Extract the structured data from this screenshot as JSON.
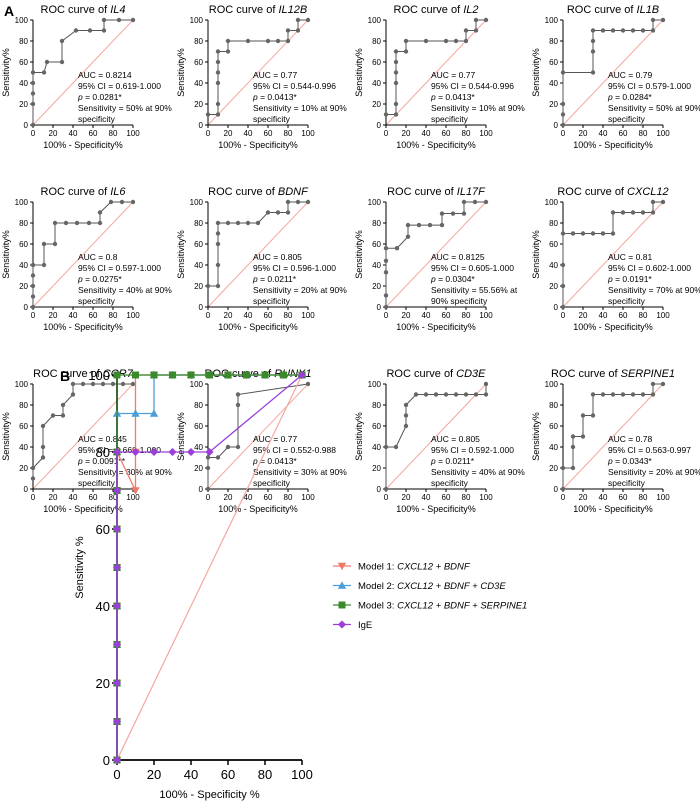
{
  "panel_a_letter": "A",
  "panel_b_letter": "B",
  "chart_data": [
    {
      "type": "line",
      "title_prefix": "ROC curve of ",
      "gene": "IL4",
      "xlabel": "100% - Specificity%",
      "ylabel": "Sensitivity%",
      "xlim": [
        0,
        100
      ],
      "ylim": [
        0,
        100
      ],
      "xticks": [
        0,
        20,
        40,
        60,
        80,
        100
      ],
      "yticks": [
        0,
        20,
        40,
        60,
        80,
        100
      ],
      "x": [
        0,
        0,
        0,
        0,
        0,
        11,
        14,
        29,
        29,
        43,
        57,
        71,
        71,
        86,
        100
      ],
      "y": [
        0,
        20,
        30,
        40,
        50,
        50,
        60,
        60,
        80,
        90,
        90,
        90,
        100,
        100,
        100
      ],
      "annotation": [
        "AUC = 0.8214",
        "95% CI = 0.619-1.000",
        "p = 0.0281*",
        "Sensitivity = 50% at 90%",
        "specificity"
      ]
    },
    {
      "type": "line",
      "title_prefix": "ROC curve of ",
      "gene": "IL12B",
      "xlabel": "100% - Specificity%",
      "ylabel": "Sensitivity%",
      "xlim": [
        0,
        100
      ],
      "ylim": [
        0,
        100
      ],
      "xticks": [
        0,
        20,
        40,
        60,
        80,
        100
      ],
      "yticks": [
        0,
        20,
        40,
        60,
        80,
        100
      ],
      "x": [
        0,
        10,
        10,
        10,
        10,
        10,
        10,
        20,
        20,
        40,
        60,
        70,
        80,
        80,
        90,
        90,
        100
      ],
      "y": [
        10,
        10,
        20,
        40,
        50,
        60,
        70,
        70,
        80,
        80,
        80,
        80,
        80,
        90,
        90,
        100,
        100
      ],
      "annotation": [
        "AUC = 0.77",
        "95% CI = 0.544-0.996",
        "p = 0.0413*",
        "Sensitivity = 10% at 90%",
        "specificity"
      ]
    },
    {
      "type": "line",
      "title_prefix": "ROC curve of ",
      "gene": "IL2",
      "xlabel": "100% - Specificity%",
      "ylabel": "Sensitivity%",
      "xlim": [
        0,
        100
      ],
      "ylim": [
        0,
        100
      ],
      "xticks": [
        0,
        20,
        40,
        60,
        80,
        100
      ],
      "yticks": [
        0,
        20,
        40,
        60,
        80,
        100
      ],
      "x": [
        0,
        10,
        10,
        10,
        10,
        10,
        10,
        20,
        20,
        40,
        60,
        70,
        80,
        80,
        90,
        90,
        100
      ],
      "y": [
        10,
        10,
        20,
        40,
        50,
        60,
        70,
        70,
        80,
        80,
        80,
        80,
        80,
        90,
        90,
        100,
        100
      ],
      "annotation": [
        "AUC = 0.77",
        "95% CI = 0.544-0.996",
        "p = 0.0413*",
        "Sensitivity = 10% at 90%",
        "specificity"
      ]
    },
    {
      "type": "line",
      "title_prefix": "ROC curve of ",
      "gene": "IL1B",
      "xlabel": "100% - Specificity%",
      "ylabel": "Sensitivity%",
      "xlim": [
        0,
        100
      ],
      "ylim": [
        0,
        100
      ],
      "xticks": [
        0,
        20,
        40,
        60,
        80,
        100
      ],
      "yticks": [
        0,
        20,
        40,
        60,
        80,
        100
      ],
      "x": [
        0,
        0,
        0,
        0,
        30,
        30,
        30,
        30,
        40,
        50,
        60,
        70,
        80,
        90,
        90,
        100
      ],
      "y": [
        0,
        10,
        20,
        50,
        50,
        70,
        80,
        90,
        90,
        90,
        90,
        90,
        90,
        90,
        100,
        100
      ],
      "annotation": [
        "AUC = 0.79",
        "95% CI = 0.579-1.000",
        "p = 0.0284*",
        "Sensitivity = 50% at 90%",
        "specificity"
      ]
    },
    {
      "type": "line",
      "title_prefix": "ROC curve of ",
      "gene": "IL6",
      "xlabel": "100% - Specificity%",
      "ylabel": "Sensitivity%",
      "xlim": [
        0,
        100
      ],
      "ylim": [
        0,
        100
      ],
      "xticks": [
        0,
        20,
        40,
        60,
        80,
        100
      ],
      "yticks": [
        0,
        20,
        40,
        60,
        80,
        100
      ],
      "x": [
        0,
        0,
        0,
        0,
        0,
        11,
        11,
        22,
        22,
        33,
        44,
        56,
        67,
        67,
        78,
        89,
        100
      ],
      "y": [
        0,
        10,
        20,
        30,
        40,
        40,
        60,
        60,
        80,
        80,
        80,
        80,
        80,
        90,
        100,
        100,
        100
      ],
      "annotation": [
        "AUC = 0.8",
        "95% CI = 0.597-1.000",
        "p = 0.0275*",
        "Sensitivity = 40% at 90%",
        "specificity"
      ]
    },
    {
      "type": "line",
      "title_prefix": "ROC curve of ",
      "gene": "BDNF",
      "xlabel": "100% - Specificity%",
      "ylabel": "Sensitivity%",
      "xlim": [
        0,
        100
      ],
      "ylim": [
        0,
        100
      ],
      "xticks": [
        0,
        20,
        40,
        60,
        80,
        100
      ],
      "yticks": [
        0,
        20,
        40,
        60,
        80,
        100
      ],
      "x": [
        0,
        10,
        10,
        10,
        10,
        10,
        20,
        30,
        40,
        50,
        60,
        70,
        80,
        80,
        90,
        100
      ],
      "y": [
        20,
        20,
        40,
        60,
        70,
        80,
        80,
        80,
        80,
        80,
        90,
        90,
        90,
        100,
        100,
        100
      ],
      "annotation": [
        "AUC = 0.805",
        "95% CI = 0.596-1.000",
        "p = 0.0211*",
        "Sensitivity = 20% at 90%",
        "specificity"
      ]
    },
    {
      "type": "line",
      "title_prefix": "ROC curve of ",
      "gene": "IL17F",
      "xlabel": "100% - Specificity%",
      "ylabel": "Sensitivity%",
      "xlim": [
        0,
        100
      ],
      "ylim": [
        0,
        100
      ],
      "xticks": [
        0,
        20,
        40,
        60,
        80,
        100
      ],
      "yticks": [
        0,
        20,
        40,
        60,
        80,
        100
      ],
      "x": [
        0,
        0,
        0,
        0,
        0,
        11,
        22,
        22,
        33,
        44,
        56,
        56,
        67,
        78,
        78,
        89,
        100
      ],
      "y": [
        0,
        11,
        33,
        44,
        56,
        56,
        67,
        78,
        78,
        78,
        78,
        89,
        89,
        89,
        100,
        100,
        100
      ],
      "annotation": [
        "AUC = 0.8125",
        "95% CI = 0.605-1.000",
        "p = 0.0304*",
        "Sensitivity = 55.56% at",
        "90% specificity"
      ]
    },
    {
      "type": "line",
      "title_prefix": "ROC curve of ",
      "gene": "CXCL12",
      "xlabel": "100% - Specificity%",
      "ylabel": "Sensitivity%",
      "xlim": [
        0,
        100
      ],
      "ylim": [
        0,
        100
      ],
      "xticks": [
        0,
        20,
        40,
        60,
        80,
        100
      ],
      "yticks": [
        0,
        20,
        40,
        60,
        80,
        100
      ],
      "x": [
        0,
        0,
        0,
        0,
        10,
        20,
        30,
        40,
        50,
        50,
        60,
        70,
        80,
        90,
        90,
        100
      ],
      "y": [
        0,
        20,
        40,
        70,
        70,
        70,
        70,
        70,
        70,
        90,
        90,
        90,
        90,
        90,
        100,
        100
      ],
      "annotation": [
        "AUC = 0.81",
        "95% CI = 0.602-1.000",
        "p = 0.0191*",
        "Sensitivity = 70% at 90%",
        "specificity"
      ]
    },
    {
      "type": "line",
      "title_prefix": "ROC curve of ",
      "gene": "CCR7",
      "xlabel": "100% - Specificity%",
      "ylabel": "Sensitivity%",
      "xlim": [
        0,
        100
      ],
      "ylim": [
        0,
        100
      ],
      "xticks": [
        0,
        20,
        40,
        60,
        80,
        100
      ],
      "yticks": [
        0,
        20,
        40,
        60,
        80,
        100
      ],
      "x": [
        0,
        0,
        10,
        10,
        10,
        20,
        30,
        30,
        40,
        40,
        50,
        60,
        70,
        80,
        90,
        100
      ],
      "y": [
        10,
        20,
        30,
        40,
        60,
        70,
        70,
        80,
        90,
        100,
        100,
        100,
        100,
        100,
        100,
        100
      ],
      "annotation": [
        "AUC = 0.845",
        "95% CI = 0.668-1.000",
        "p = 0.0091**",
        "Sensitivity = 30% at 90%",
        "specificity"
      ]
    },
    {
      "type": "line",
      "title_prefix": "ROC curve of ",
      "gene": "RUNX1",
      "xlabel": "100% - Specificity%",
      "ylabel": "Sensitivity%",
      "xlim": [
        0,
        100
      ],
      "ylim": [
        0,
        100
      ],
      "xticks": [
        0,
        20,
        40,
        60,
        80,
        100
      ],
      "yticks": [
        0,
        20,
        40,
        60,
        80,
        100
      ],
      "x": [
        0,
        0,
        0,
        10,
        20,
        30,
        30,
        30,
        100
      ],
      "y": [
        0,
        20,
        30,
        30,
        40,
        40,
        80,
        90,
        100
      ],
      "annotation": [
        "AUC = 0.77",
        "95% CI = 0.552-0.988",
        "p = 0.0413*",
        "Sensitivity = 30% at 90%",
        "specificity"
      ]
    },
    {
      "type": "line",
      "title_prefix": "ROC curve of ",
      "gene": "CD3E",
      "xlabel": "100% - Specificity%",
      "ylabel": "Sensitivity%",
      "xlim": [
        0,
        100
      ],
      "ylim": [
        0,
        100
      ],
      "xticks": [
        0,
        20,
        40,
        60,
        80,
        100
      ],
      "yticks": [
        0,
        20,
        40,
        60,
        80,
        100
      ],
      "x": [
        0,
        0,
        10,
        20,
        20,
        20,
        30,
        40,
        50,
        60,
        70,
        80,
        90,
        100,
        100
      ],
      "y": [
        0,
        40,
        40,
        60,
        70,
        80,
        90,
        90,
        90,
        90,
        90,
        90,
        90,
        90,
        100
      ],
      "annotation": [
        "AUC = 0.805",
        "95% CI = 0.592-1.000",
        "p = 0.0211*",
        "Sensitivity = 40% at 90%",
        "specificity"
      ]
    },
    {
      "type": "line",
      "title_prefix": "ROC curve of ",
      "gene": "SERPINE1",
      "xlabel": "100% - Specificity%",
      "ylabel": "Sensitivity%",
      "xlim": [
        0,
        100
      ],
      "ylim": [
        0,
        100
      ],
      "xticks": [
        0,
        20,
        40,
        60,
        80,
        100
      ],
      "yticks": [
        0,
        20,
        40,
        60,
        80,
        100
      ],
      "x": [
        0,
        0,
        10,
        10,
        10,
        20,
        20,
        30,
        30,
        40,
        50,
        60,
        70,
        80,
        90,
        90,
        100
      ],
      "y": [
        0,
        20,
        20,
        40,
        50,
        50,
        70,
        70,
        90,
        90,
        90,
        90,
        90,
        90,
        90,
        100,
        100
      ],
      "annotation": [
        "AUC = 0.78",
        "95% CI = 0.563-0.997",
        "p = 0.0343*",
        "Sensitivity = 20% at 90%",
        "specificity"
      ]
    },
    {
      "type": "line",
      "xlabel": "100% - Specificity %",
      "ylabel": "Sensitivity %",
      "xlim": [
        0,
        100
      ],
      "ylim": [
        0,
        100
      ],
      "xticks": [
        0,
        20,
        40,
        60,
        80,
        100
      ],
      "yticks": [
        0,
        20,
        40,
        60,
        80,
        100
      ],
      "legend_position": "right",
      "series": [
        {
          "name_prefix": "Model 1: ",
          "name_genes": "CXCL12 + BDNF",
          "color": "#f07a6a",
          "marker": "triangle-down",
          "x": [
            0,
            0,
            0,
            0,
            0,
            0,
            0,
            0,
            0,
            10,
            10,
            10,
            20,
            30,
            40,
            50,
            60,
            70,
            80,
            90,
            100
          ],
          "y": [
            0,
            10,
            20,
            30,
            40,
            50,
            60,
            70,
            80,
            70,
            80,
            100,
            100,
            100,
            100,
            100,
            100,
            100,
            100,
            100,
            100
          ]
        },
        {
          "name_prefix": "Model 2: ",
          "name_genes": "CXCL12 + BDNF + CD3E",
          "color": "#4a9fd8",
          "marker": "triangle-up",
          "x": [
            0,
            0,
            0,
            0,
            0,
            0,
            0,
            0,
            0,
            0,
            10,
            20,
            20,
            30,
            40,
            50,
            60,
            70,
            80,
            90,
            100
          ],
          "y": [
            0,
            10,
            20,
            30,
            40,
            50,
            60,
            70,
            80,
            90,
            90,
            90,
            100,
            100,
            100,
            100,
            100,
            100,
            100,
            100,
            100
          ]
        },
        {
          "name_prefix": "Model 3: ",
          "name_genes": "CXCL12 + BDNF + SERPINE1",
          "color": "#3a8a2c",
          "marker": "square",
          "x": [
            0,
            0,
            0,
            0,
            0,
            0,
            0,
            0,
            0,
            0,
            10,
            20,
            30,
            40,
            50,
            60,
            70,
            80,
            90,
            100
          ],
          "y": [
            0,
            10,
            20,
            30,
            40,
            50,
            60,
            70,
            80,
            100,
            100,
            100,
            100,
            100,
            100,
            100,
            100,
            100,
            100,
            100
          ]
        },
        {
          "name_prefix": "",
          "name_genes": "IgE",
          "color": "#9b3fd8",
          "marker": "diamond",
          "x": [
            0,
            0,
            0,
            0,
            0,
            0,
            0,
            0,
            0,
            10,
            20,
            30,
            40,
            50,
            100
          ],
          "y": [
            0,
            10,
            20,
            30,
            40,
            50,
            60,
            70,
            80,
            80,
            80,
            80,
            80,
            80,
            100
          ]
        }
      ]
    }
  ]
}
